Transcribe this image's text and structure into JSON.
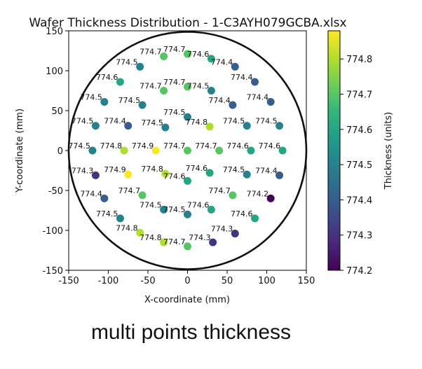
{
  "caption": "multi points thickness",
  "chart_data": {
    "type": "scatter",
    "title": "Wafer Thickness Distribution - 1-C3AYH079GCBA.xlsx",
    "xlabel": "X-coordinate (mm)",
    "ylabel": "Y-coordinate (mm)",
    "xlim": [
      -150,
      150
    ],
    "ylim": [
      -150,
      150
    ],
    "xticks": [
      -150,
      -100,
      -50,
      0,
      50,
      100,
      150
    ],
    "yticks": [
      -150,
      -100,
      -50,
      0,
      50,
      100,
      150
    ],
    "grid": false,
    "wafer_boundary": {
      "center": [
        0,
        0
      ],
      "radius": 150
    },
    "colorbar": {
      "label": "Thickness (units)",
      "colormap": "viridis",
      "range": [
        774.2,
        774.88
      ],
      "ticks": [
        774.2,
        774.3,
        774.4,
        774.5,
        774.6,
        774.7,
        774.8
      ]
    },
    "points": [
      {
        "x": -30,
        "y": 118,
        "value": 774.7
      },
      {
        "x": 0,
        "y": 121,
        "value": 774.7
      },
      {
        "x": 30,
        "y": 115,
        "value": 774.6
      },
      {
        "x": -60,
        "y": 105,
        "value": 774.5
      },
      {
        "x": 60,
        "y": 105,
        "value": 774.4
      },
      {
        "x": -85,
        "y": 86,
        "value": 774.6
      },
      {
        "x": 85,
        "y": 86,
        "value": 774.4
      },
      {
        "x": -30,
        "y": 75,
        "value": 774.7
      },
      {
        "x": 0,
        "y": 80,
        "value": 774.7
      },
      {
        "x": 30,
        "y": 75,
        "value": 774.5
      },
      {
        "x": -105,
        "y": 61,
        "value": 774.5
      },
      {
        "x": -57,
        "y": 57,
        "value": 774.5
      },
      {
        "x": 57,
        "y": 57,
        "value": 774.4
      },
      {
        "x": 105,
        "y": 61,
        "value": 774.4
      },
      {
        "x": 0,
        "y": 42,
        "value": 774.5
      },
      {
        "x": -116,
        "y": 31,
        "value": 774.5
      },
      {
        "x": -75,
        "y": 31,
        "value": 774.4
      },
      {
        "x": -28,
        "y": 29,
        "value": 774.5
      },
      {
        "x": 28,
        "y": 30,
        "value": 774.8
      },
      {
        "x": 75,
        "y": 31,
        "value": 774.5
      },
      {
        "x": 116,
        "y": 31,
        "value": 774.5
      },
      {
        "x": -120,
        "y": 0,
        "value": 774.5
      },
      {
        "x": -80,
        "y": 0,
        "value": 774.8
      },
      {
        "x": -40,
        "y": 0,
        "value": 774.9
      },
      {
        "x": 0,
        "y": 0,
        "value": 774.7
      },
      {
        "x": 40,
        "y": 0,
        "value": 774.7
      },
      {
        "x": 80,
        "y": 0,
        "value": 774.6
      },
      {
        "x": 120,
        "y": 0,
        "value": 774.6
      },
      {
        "x": -116,
        "y": -31,
        "value": 774.3
      },
      {
        "x": -75,
        "y": -30,
        "value": 774.9
      },
      {
        "x": -28,
        "y": -29,
        "value": 774.8
      },
      {
        "x": 0,
        "y": -38,
        "value": 774.6
      },
      {
        "x": 28,
        "y": -28,
        "value": 774.6
      },
      {
        "x": 75,
        "y": -30,
        "value": 774.5
      },
      {
        "x": 116,
        "y": -31,
        "value": 774.4
      },
      {
        "x": -105,
        "y": -60,
        "value": 774.4
      },
      {
        "x": -57,
        "y": -56,
        "value": 774.7
      },
      {
        "x": 57,
        "y": -56,
        "value": 774.7
      },
      {
        "x": 105,
        "y": -60,
        "value": 774.2
      },
      {
        "x": -30,
        "y": -74,
        "value": 774.5
      },
      {
        "x": 0,
        "y": -80,
        "value": 774.5
      },
      {
        "x": 30,
        "y": -74,
        "value": 774.6
      },
      {
        "x": -85,
        "y": -85,
        "value": 774.5
      },
      {
        "x": 85,
        "y": -85,
        "value": 774.6
      },
      {
        "x": 60,
        "y": -104,
        "value": 774.3
      },
      {
        "x": -60,
        "y": -103,
        "value": 774.8
      },
      {
        "x": -30,
        "y": -115,
        "value": 774.8
      },
      {
        "x": 0,
        "y": -120,
        "value": 774.7
      },
      {
        "x": 32,
        "y": -115,
        "value": 774.3
      }
    ]
  }
}
